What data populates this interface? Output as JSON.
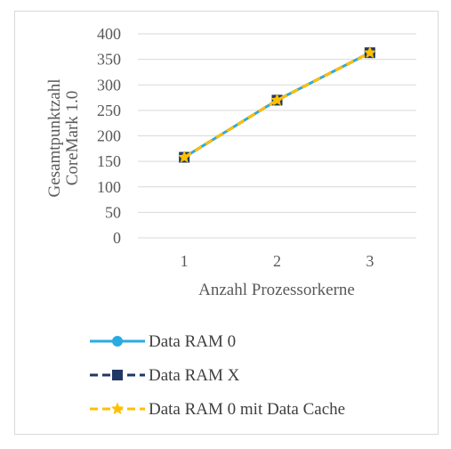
{
  "chart_data": {
    "type": "line",
    "title": "",
    "xlabel": "Anzahl Prozessorkerne",
    "ylabel_lines": [
      "Gesamtpunktzahl",
      "CoreMark 1.0"
    ],
    "categories": [
      "1",
      "2",
      "3"
    ],
    "ylim": [
      0,
      400
    ],
    "yticks": [
      0,
      50,
      100,
      150,
      200,
      250,
      300,
      350,
      400
    ],
    "grid": true,
    "legend": "bottom",
    "series": [
      {
        "name": "Data RAM 0",
        "values": [
          158,
          270,
          363
        ],
        "color": "#29abe2",
        "dash": "solid",
        "marker": "circle"
      },
      {
        "name": "Data RAM X",
        "values": [
          158,
          270,
          363
        ],
        "color": "#1f3864",
        "dash": "dash",
        "marker": "square"
      },
      {
        "name": "Data RAM 0 mit Data Cache",
        "values": [
          158,
          270,
          363
        ],
        "color": "#ffc000",
        "dash": "dash",
        "marker": "star"
      }
    ]
  }
}
